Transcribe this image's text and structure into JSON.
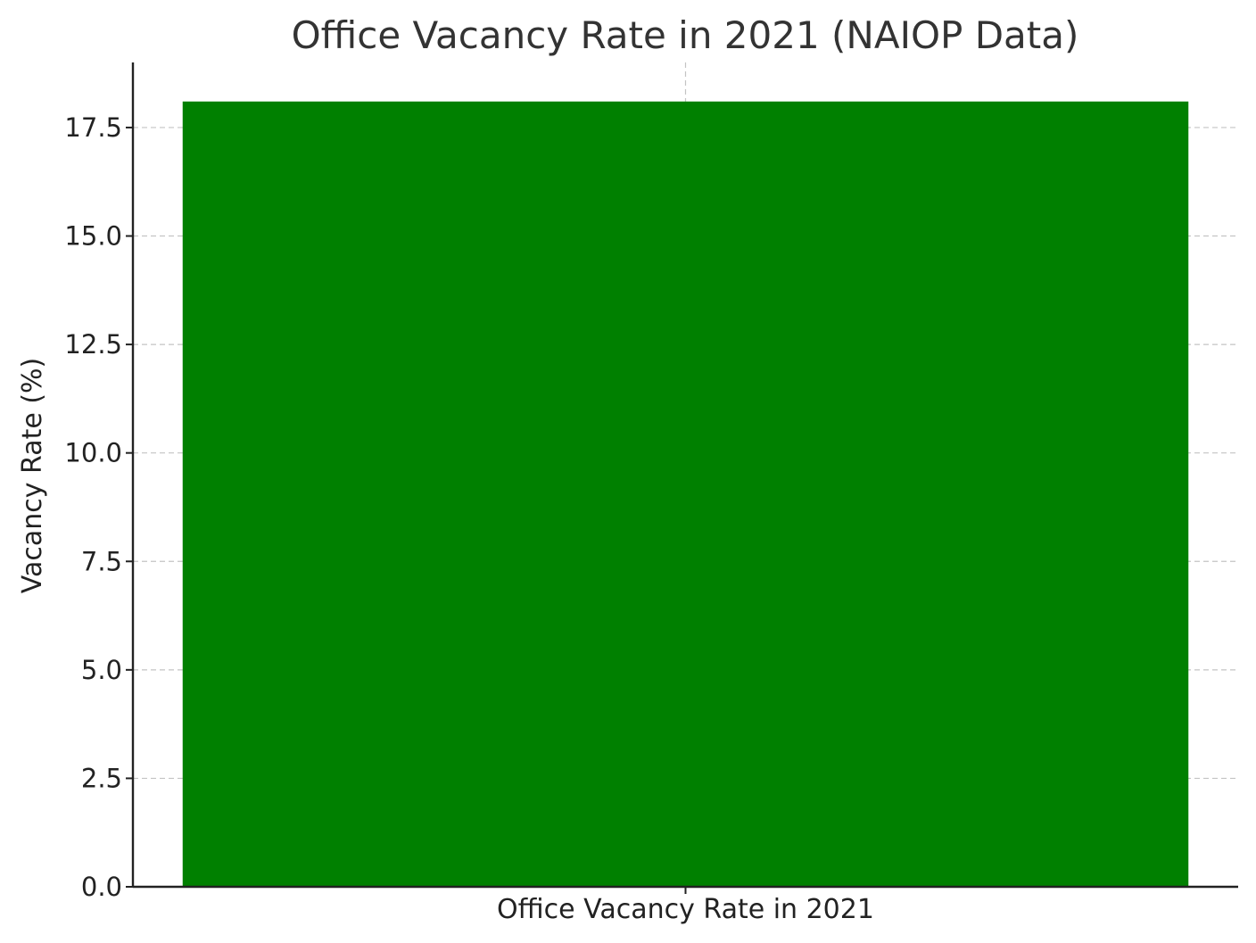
{
  "chart_data": {
    "type": "bar",
    "title": "Office Vacancy Rate in 2021 (NAIOP Data)",
    "xlabel": "",
    "ylabel": "Vacancy Rate (%)",
    "categories": [
      "Office Vacancy Rate in 2021"
    ],
    "values": [
      18.1
    ],
    "ylim": [
      0,
      19.0
    ],
    "yticks": [
      "0.0",
      "2.5",
      "5.0",
      "7.5",
      "10.0",
      "12.5",
      "15.0",
      "17.5"
    ],
    "grid": true,
    "bar_color": "#008000"
  }
}
